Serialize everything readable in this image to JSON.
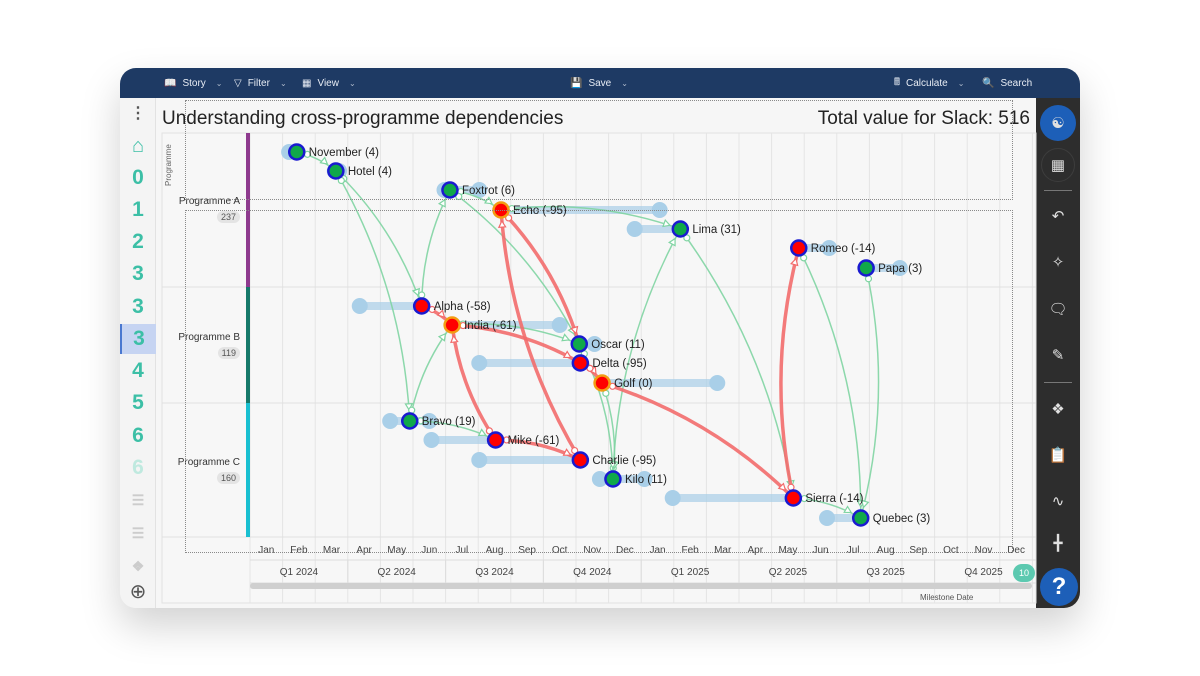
{
  "toolbar": {
    "story": "Story",
    "filter": "Filter",
    "view": "View",
    "save": "Save",
    "calculate": "Calculate",
    "search": "Search"
  },
  "title": "Understanding cross-programme dependencies",
  "total": "Total value for Slack: 516",
  "y_axis_label": "Programme",
  "milestone_label": "Milestone Date",
  "help_badge": "10",
  "help_label": "?",
  "left_sidebar": [
    {
      "label": "",
      "icon": "home-icon"
    },
    {
      "label": "0"
    },
    {
      "label": "1"
    },
    {
      "label": "2"
    },
    {
      "label": "3"
    },
    {
      "label": "3"
    },
    {
      "label": "3",
      "selected": true
    },
    {
      "label": "4"
    },
    {
      "label": "5"
    },
    {
      "label": "6"
    },
    {
      "label": "6",
      "faded": true
    }
  ],
  "right_sidebar": [
    "network-icon",
    "table-icon",
    "undo-icon",
    "sparkle-icon",
    "comments-icon",
    "pencil-icon",
    "puzzle-icon",
    "clipboard-icon",
    "pulse-icon",
    "collapse-icon"
  ],
  "colors": {
    "green": "#10a84a",
    "red": "#ff0000",
    "node_border": "#1a1ad0",
    "warn_border": "#f39c12",
    "range_bar": "#a9cfe8",
    "link_ok": "#7fd4a2",
    "link_bad": "#f26b6b",
    "programme_a": "#8e3a8e",
    "programme_b": "#16796a",
    "programme_c": "#19bfd0"
  },
  "programmes": [
    {
      "name": "Programme A",
      "value": "237"
    },
    {
      "name": "Programme B",
      "value": "119"
    },
    {
      "name": "Programme C",
      "value": "160"
    }
  ],
  "months": [
    "Jan",
    "Feb",
    "Mar",
    "Apr",
    "May",
    "Jun",
    "Jul",
    "Aug",
    "Sep",
    "Oct",
    "Nov",
    "Dec",
    "Jan",
    "Feb",
    "Mar",
    "Apr",
    "May",
    "Jun",
    "Jul",
    "Aug",
    "Sep",
    "Oct",
    "Nov",
    "Dec"
  ],
  "quarters": [
    "Q1 2024",
    "Q2 2024",
    "Q3 2024",
    "Q4 2024",
    "Q1 2025",
    "Q2 2025",
    "Q3 2025",
    "Q4 2025"
  ],
  "nodes": [
    {
      "id": "November",
      "label": "November (4)",
      "programme": "Programme A",
      "date": "2024-02-14",
      "range": [
        "2024-02-07",
        "2024-02-15"
      ],
      "status": "ok"
    },
    {
      "id": "Hotel",
      "label": "Hotel (4)",
      "programme": "Programme A",
      "date": "2024-03-20",
      "range": [
        "2024-03-19",
        "2024-03-23"
      ],
      "status": "ok"
    },
    {
      "id": "Foxtrot",
      "label": "Foxtrot (6)",
      "programme": "Programme A",
      "date": "2024-07-05",
      "range": [
        "2024-06-30",
        "2024-08-02"
      ],
      "status": "ok"
    },
    {
      "id": "Echo",
      "label": "Echo (-95)",
      "programme": "Programme A",
      "date": "2024-08-22",
      "range": [
        "2024-08-22",
        "2025-01-18"
      ],
      "status": "warn"
    },
    {
      "id": "Lima",
      "label": "Lima (31)",
      "programme": "Programme A",
      "date": "2025-02-07",
      "range": [
        "2024-12-25",
        "2025-02-07"
      ],
      "status": "ok"
    },
    {
      "id": "Romeo",
      "label": "Romeo (-14)",
      "programme": "Programme A",
      "date": "2025-05-26",
      "range": [
        "2025-05-26",
        "2025-06-24"
      ],
      "status": "bad"
    },
    {
      "id": "Papa",
      "label": "Papa (3)",
      "programme": "Programme A",
      "date": "2025-07-28",
      "range": [
        "2025-07-28",
        "2025-08-29"
      ],
      "status": "ok"
    },
    {
      "id": "Alpha",
      "label": "Alpha (-58)",
      "programme": "Programme B",
      "date": "2024-06-09",
      "range": [
        "2024-04-12",
        "2024-06-09"
      ],
      "status": "bad"
    },
    {
      "id": "India",
      "label": "India (-61)",
      "programme": "Programme B",
      "date": "2024-07-07",
      "range": [
        "2024-07-07",
        "2024-10-16"
      ],
      "status": "warn"
    },
    {
      "id": "Oscar",
      "label": "Oscar (11)",
      "programme": "Programme B",
      "date": "2024-11-04",
      "range": [
        "2024-11-04",
        "2024-11-18"
      ],
      "status": "ok"
    },
    {
      "id": "Delta",
      "label": "Delta (-95)",
      "programme": "Programme B",
      "date": "2024-11-05",
      "range": [
        "2024-08-02",
        "2024-11-05"
      ],
      "status": "bad"
    },
    {
      "id": "Golf",
      "label": "Golf (0)",
      "programme": "Programme B",
      "date": "2024-11-25",
      "range": [
        "2024-11-25",
        "2025-03-11"
      ],
      "status": "warn"
    },
    {
      "id": "Bravo",
      "label": "Bravo (19)",
      "programme": "Programme C",
      "date": "2024-05-28",
      "range": [
        "2024-05-10",
        "2024-06-16"
      ],
      "status": "ok"
    },
    {
      "id": "Mike",
      "label": "Mike (-61)",
      "programme": "Programme C",
      "date": "2024-08-17",
      "range": [
        "2024-06-18",
        "2024-08-17"
      ],
      "status": "bad"
    },
    {
      "id": "Charlie",
      "label": "Charlie (-95)",
      "programme": "Programme C",
      "date": "2024-11-05",
      "range": [
        "2024-08-02",
        "2024-11-05"
      ],
      "status": "bad"
    },
    {
      "id": "Kilo",
      "label": "Kilo (11)",
      "programme": "Programme C",
      "date": "2024-12-05",
      "range": [
        "2024-11-23",
        "2025-01-04"
      ],
      "status": "ok"
    },
    {
      "id": "Sierra",
      "label": "Sierra (-14)",
      "programme": "Programme C",
      "date": "2025-05-21",
      "range": [
        "2025-01-30",
        "2025-05-21"
      ],
      "status": "bad"
    },
    {
      "id": "Quebec",
      "label": "Quebec (3)",
      "programme": "Programme C",
      "date": "2025-07-23",
      "range": [
        "2025-06-22",
        "2025-07-23"
      ],
      "status": "ok"
    }
  ],
  "links": [
    [
      "November",
      "Hotel",
      "ok"
    ],
    [
      "Hotel",
      "Alpha",
      "ok"
    ],
    [
      "Hotel",
      "Bravo",
      "ok"
    ],
    [
      "Alpha",
      "Foxtrot",
      "ok"
    ],
    [
      "Foxtrot",
      "Echo",
      "ok"
    ],
    [
      "Foxtrot",
      "Oscar",
      "ok"
    ],
    [
      "Echo",
      "Lima",
      "ok"
    ],
    [
      "India",
      "Oscar",
      "ok"
    ],
    [
      "Bravo",
      "India",
      "ok"
    ],
    [
      "Bravo",
      "Mike",
      "ok"
    ],
    [
      "Kilo",
      "Lima",
      "ok"
    ],
    [
      "Lima",
      "Sierra",
      "ok"
    ],
    [
      "Golf",
      "Kilo",
      "ok"
    ],
    [
      "Oscar",
      "Kilo",
      "ok"
    ],
    [
      "Romeo",
      "Quebec",
      "ok"
    ],
    [
      "Papa",
      "Quebec",
      "ok"
    ],
    [
      "Sierra",
      "Quebec",
      "ok"
    ],
    [
      "Alpha",
      "India",
      "bad"
    ],
    [
      "India",
      "Delta",
      "bad"
    ],
    [
      "Delta",
      "Golf",
      "bad"
    ],
    [
      "Echo",
      "Oscar",
      "bad"
    ],
    [
      "Charlie",
      "Echo",
      "bad"
    ],
    [
      "Mike",
      "India",
      "bad"
    ],
    [
      "Mike",
      "Charlie",
      "bad"
    ],
    [
      "Golf",
      "Sierra",
      "bad"
    ],
    [
      "Sierra",
      "Romeo",
      "bad"
    ]
  ]
}
